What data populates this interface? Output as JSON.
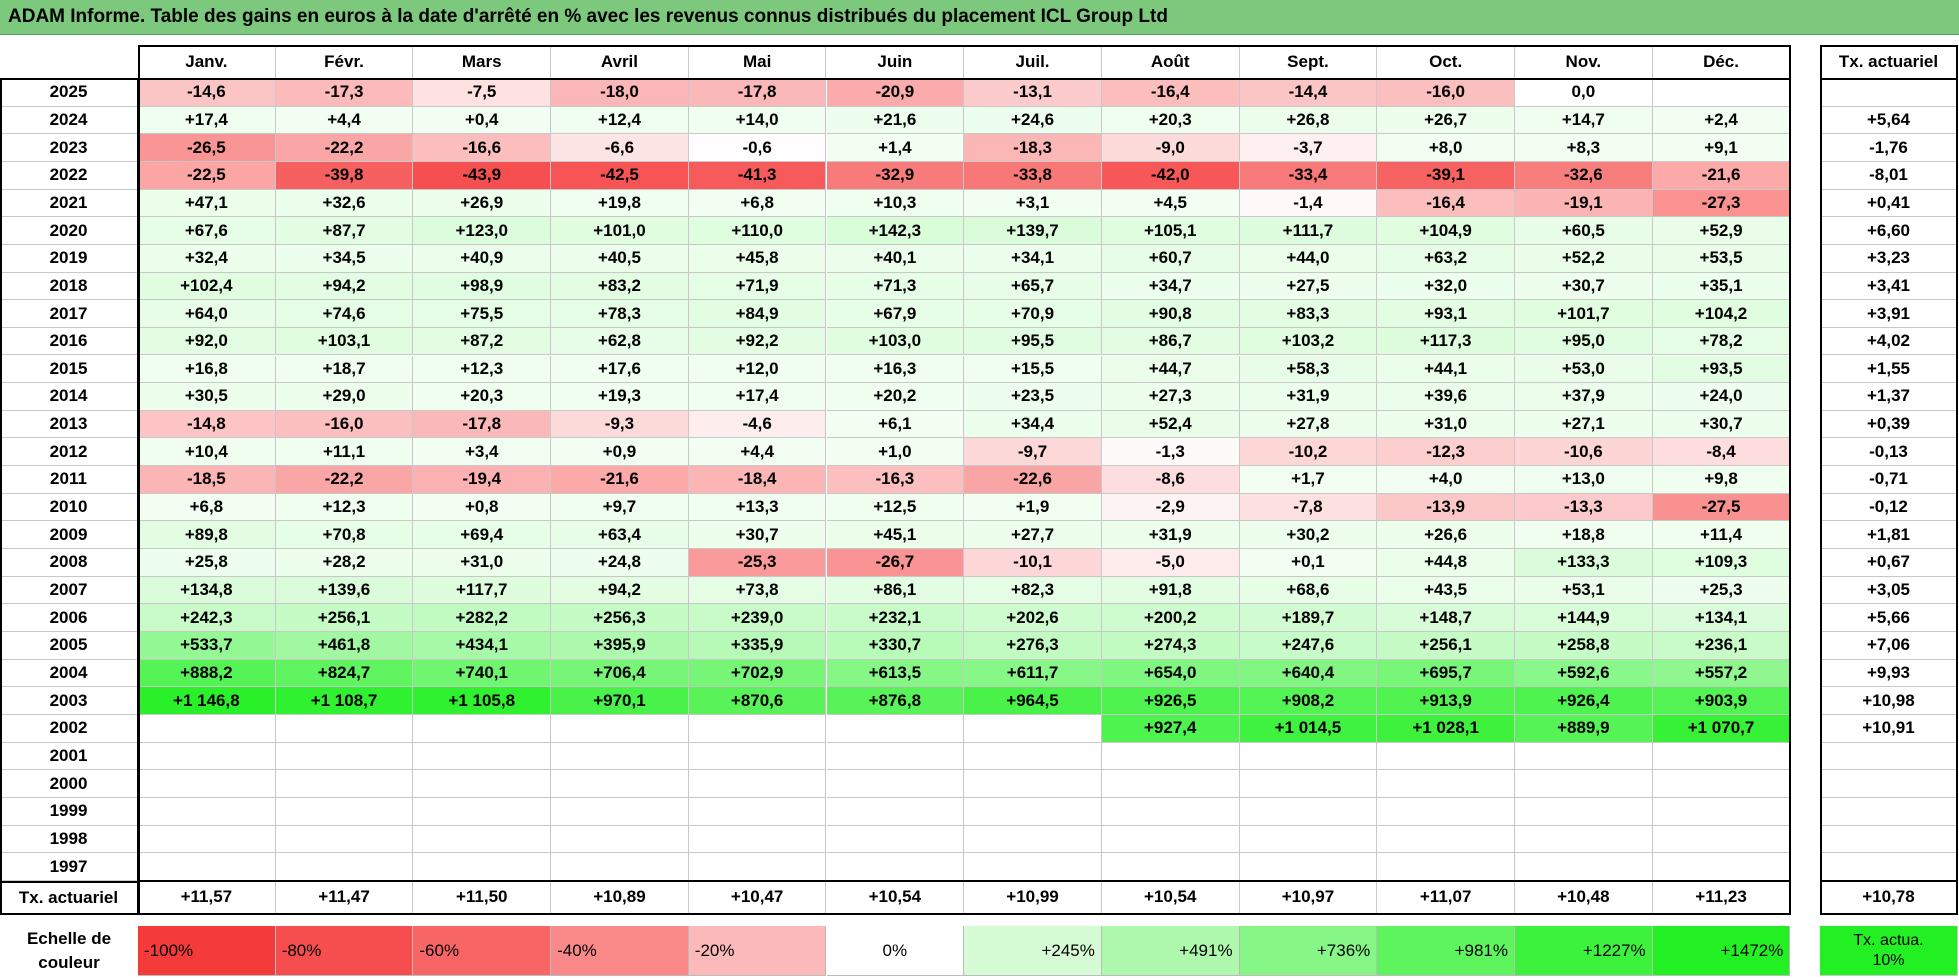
{
  "title": "ADAM Informe. Table des gains en euros à la date d'arrêté en % avec les revenus connus distribués du placement ICL Group Ltd",
  "table": {
    "months": [
      "Janv.",
      "Févr.",
      "Mars",
      "Avril",
      "Mai",
      "Juin",
      "Juil.",
      "Août",
      "Sept.",
      "Oct.",
      "Nov.",
      "Déc."
    ],
    "tx_header": "Tx. actuariel",
    "rows": [
      {
        "year": "2025",
        "values": [
          "-14,6",
          "-17,3",
          "-7,5",
          "-18,0",
          "-17,8",
          "-20,9",
          "-13,1",
          "-16,4",
          "-14,4",
          "-16,0",
          "0,0",
          null
        ],
        "tx": null
      },
      {
        "year": "2024",
        "values": [
          "+17,4",
          "+4,4",
          "+0,4",
          "+12,4",
          "+14,0",
          "+21,6",
          "+24,6",
          "+20,3",
          "+26,8",
          "+26,7",
          "+14,7",
          "+2,4"
        ],
        "tx": "+5,64"
      },
      {
        "year": "2023",
        "values": [
          "-26,5",
          "-22,2",
          "-16,6",
          "-6,6",
          "-0,6",
          "+1,4",
          "-18,3",
          "-9,0",
          "-3,7",
          "+8,0",
          "+8,3",
          "+9,1"
        ],
        "tx": "-1,76"
      },
      {
        "year": "2022",
        "values": [
          "-22,5",
          "-39,8",
          "-43,9",
          "-42,5",
          "-41,3",
          "-32,9",
          "-33,8",
          "-42,0",
          "-33,4",
          "-39,1",
          "-32,6",
          "-21,6"
        ],
        "tx": "-8,01"
      },
      {
        "year": "2021",
        "values": [
          "+47,1",
          "+32,6",
          "+26,9",
          "+19,8",
          "+6,8",
          "+10,3",
          "+3,1",
          "+4,5",
          "-1,4",
          "-16,4",
          "-19,1",
          "-27,3"
        ],
        "tx": "+0,41"
      },
      {
        "year": "2020",
        "values": [
          "+67,6",
          "+87,7",
          "+123,0",
          "+101,0",
          "+110,0",
          "+142,3",
          "+139,7",
          "+105,1",
          "+111,7",
          "+104,9",
          "+60,5",
          "+52,9"
        ],
        "tx": "+6,60"
      },
      {
        "year": "2019",
        "values": [
          "+32,4",
          "+34,5",
          "+40,9",
          "+40,5",
          "+45,8",
          "+40,1",
          "+34,1",
          "+60,7",
          "+44,0",
          "+63,2",
          "+52,2",
          "+53,5"
        ],
        "tx": "+3,23"
      },
      {
        "year": "2018",
        "values": [
          "+102,4",
          "+94,2",
          "+98,9",
          "+83,2",
          "+71,9",
          "+71,3",
          "+65,7",
          "+34,7",
          "+27,5",
          "+32,0",
          "+30,7",
          "+35,1"
        ],
        "tx": "+3,41"
      },
      {
        "year": "2017",
        "values": [
          "+64,0",
          "+74,6",
          "+75,5",
          "+78,3",
          "+84,9",
          "+67,9",
          "+70,9",
          "+90,8",
          "+83,3",
          "+93,1",
          "+101,7",
          "+104,2"
        ],
        "tx": "+3,91"
      },
      {
        "year": "2016",
        "values": [
          "+92,0",
          "+103,1",
          "+87,2",
          "+62,8",
          "+92,2",
          "+103,0",
          "+95,5",
          "+86,7",
          "+103,2",
          "+117,3",
          "+95,0",
          "+78,2"
        ],
        "tx": "+4,02"
      },
      {
        "year": "2015",
        "values": [
          "+16,8",
          "+18,7",
          "+12,3",
          "+17,6",
          "+12,0",
          "+16,3",
          "+15,5",
          "+44,7",
          "+58,3",
          "+44,1",
          "+53,0",
          "+93,5"
        ],
        "tx": "+1,55"
      },
      {
        "year": "2014",
        "values": [
          "+30,5",
          "+29,0",
          "+20,3",
          "+19,3",
          "+17,4",
          "+20,2",
          "+23,5",
          "+27,3",
          "+31,9",
          "+39,6",
          "+37,9",
          "+24,0"
        ],
        "tx": "+1,37"
      },
      {
        "year": "2013",
        "values": [
          "-14,8",
          "-16,0",
          "-17,8",
          "-9,3",
          "-4,6",
          "+6,1",
          "+34,4",
          "+52,4",
          "+27,8",
          "+31,0",
          "+27,1",
          "+30,7"
        ],
        "tx": "+0,39"
      },
      {
        "year": "2012",
        "values": [
          "+10,4",
          "+11,1",
          "+3,4",
          "+0,9",
          "+4,4",
          "+1,0",
          "-9,7",
          "-1,3",
          "-10,2",
          "-12,3",
          "-10,6",
          "-8,4"
        ],
        "tx": "-0,13"
      },
      {
        "year": "2011",
        "values": [
          "-18,5",
          "-22,2",
          "-19,4",
          "-21,6",
          "-18,4",
          "-16,3",
          "-22,6",
          "-8,6",
          "+1,7",
          "+4,0",
          "+13,0",
          "+9,8"
        ],
        "tx": "-0,71"
      },
      {
        "year": "2010",
        "values": [
          "+6,8",
          "+12,3",
          "+0,8",
          "+9,7",
          "+13,3",
          "+12,5",
          "+1,9",
          "-2,9",
          "-7,8",
          "-13,9",
          "-13,3",
          "-27,5"
        ],
        "tx": "-0,12"
      },
      {
        "year": "2009",
        "values": [
          "+89,8",
          "+70,8",
          "+69,4",
          "+63,4",
          "+30,7",
          "+45,1",
          "+27,7",
          "+31,9",
          "+30,2",
          "+26,6",
          "+18,8",
          "+11,4"
        ],
        "tx": "+1,81"
      },
      {
        "year": "2008",
        "values": [
          "+25,8",
          "+28,2",
          "+31,0",
          "+24,8",
          "-25,3",
          "-26,7",
          "-10,1",
          "-5,0",
          "+0,1",
          "+44,8",
          "+133,3",
          "+109,3"
        ],
        "tx": "+0,67"
      },
      {
        "year": "2007",
        "values": [
          "+134,8",
          "+139,6",
          "+117,7",
          "+94,2",
          "+73,8",
          "+86,1",
          "+82,3",
          "+91,8",
          "+68,6",
          "+43,5",
          "+53,1",
          "+25,3"
        ],
        "tx": "+3,05"
      },
      {
        "year": "2006",
        "values": [
          "+242,3",
          "+256,1",
          "+282,2",
          "+256,3",
          "+239,0",
          "+232,1",
          "+202,6",
          "+200,2",
          "+189,7",
          "+148,7",
          "+144,9",
          "+134,1"
        ],
        "tx": "+5,66"
      },
      {
        "year": "2005",
        "values": [
          "+533,7",
          "+461,8",
          "+434,1",
          "+395,9",
          "+335,9",
          "+330,7",
          "+276,3",
          "+274,3",
          "+247,6",
          "+256,1",
          "+258,8",
          "+236,1"
        ],
        "tx": "+7,06"
      },
      {
        "year": "2004",
        "values": [
          "+888,2",
          "+824,7",
          "+740,1",
          "+706,4",
          "+702,9",
          "+613,5",
          "+611,7",
          "+654,0",
          "+640,4",
          "+695,7",
          "+592,6",
          "+557,2"
        ],
        "tx": "+9,93"
      },
      {
        "year": "2003",
        "values": [
          "+1 146,8",
          "+1 108,7",
          "+1 105,8",
          "+970,1",
          "+870,6",
          "+876,8",
          "+964,5",
          "+926,5",
          "+908,2",
          "+913,9",
          "+926,4",
          "+903,9"
        ],
        "tx": "+10,98"
      },
      {
        "year": "2002",
        "values": [
          null,
          null,
          null,
          null,
          null,
          null,
          null,
          "+927,4",
          "+1 014,5",
          "+1 028,1",
          "+889,9",
          "+1 070,7"
        ],
        "tx": "+10,91"
      },
      {
        "year": "2001",
        "values": [
          null,
          null,
          null,
          null,
          null,
          null,
          null,
          null,
          null,
          null,
          null,
          null
        ],
        "tx": null
      },
      {
        "year": "2000",
        "values": [
          null,
          null,
          null,
          null,
          null,
          null,
          null,
          null,
          null,
          null,
          null,
          null
        ],
        "tx": null
      },
      {
        "year": "1999",
        "values": [
          null,
          null,
          null,
          null,
          null,
          null,
          null,
          null,
          null,
          null,
          null,
          null
        ],
        "tx": null
      },
      {
        "year": "1998",
        "values": [
          null,
          null,
          null,
          null,
          null,
          null,
          null,
          null,
          null,
          null,
          null,
          null
        ],
        "tx": null
      },
      {
        "year": "1997",
        "values": [
          null,
          null,
          null,
          null,
          null,
          null,
          null,
          null,
          null,
          null,
          null,
          null
        ],
        "tx": null
      }
    ],
    "footer": {
      "label": "Tx. actuariel",
      "values": [
        "+11,57",
        "+11,47",
        "+11,50",
        "+10,89",
        "+10,47",
        "+10,54",
        "+10,99",
        "+10,54",
        "+10,97",
        "+11,07",
        "+10,48",
        "+11,23"
      ],
      "tx": "+10,78"
    }
  },
  "scale": {
    "label": "Echelle de couleur",
    "items": [
      {
        "label": "-100%",
        "color": "#f53a3a"
      },
      {
        "label": "-80%",
        "color": "#f64e4e"
      },
      {
        "label": "-60%",
        "color": "#f76565"
      },
      {
        "label": "-40%",
        "color": "#f98989"
      },
      {
        "label": "-20%",
        "color": "#fbb9b9"
      },
      {
        "label": "0%",
        "color": "#ffffff"
      },
      {
        "label": "+245%",
        "color": "#d6fcd6"
      },
      {
        "label": "+491%",
        "color": "#aef9ae"
      },
      {
        "label": "+736%",
        "color": "#86f786"
      },
      {
        "label": "+981%",
        "color": "#5ef45e"
      },
      {
        "label": "+1227%",
        "color": "#3df23d"
      },
      {
        "label": "+1472%",
        "color": "#22f022"
      }
    ],
    "tx_label": "Tx. actua. 10%",
    "tx_color": "#22f022"
  }
}
